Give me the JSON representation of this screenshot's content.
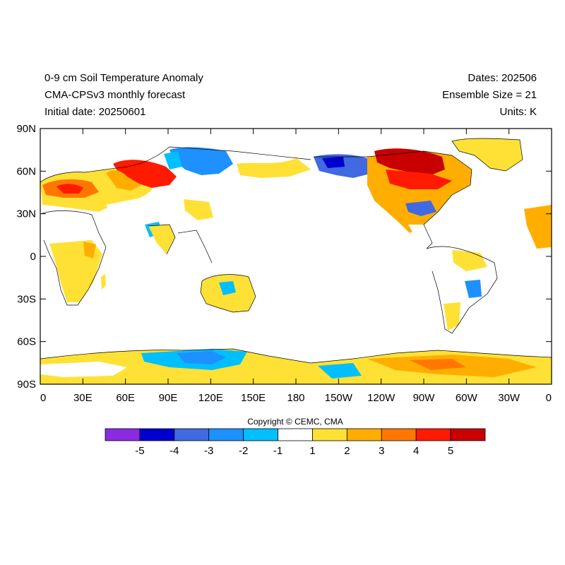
{
  "header": {
    "title": "0-9 cm Soil Temperature Anomaly",
    "subtitle": "CMA-CPSv3 monthly forecast",
    "initial_date": "Initial date: 20250601",
    "dates": "Dates: 202506",
    "ensemble": "Ensemble Size = 21",
    "units": "Units: K"
  },
  "map": {
    "projection": "cylindrical equidistant, centered 180",
    "lat_ticks": [
      "90N",
      "60N",
      "30N",
      "0",
      "30S",
      "60S",
      "90S"
    ],
    "lon_ticks": [
      "0",
      "30E",
      "60E",
      "90E",
      "120E",
      "150E",
      "180",
      "150W",
      "120W",
      "90W",
      "60W",
      "30W",
      "0"
    ],
    "ocean_color": "#ffffff",
    "coastline_color": "#000000"
  },
  "copyright": "Copyright © CEMC, CMA",
  "colorbar": {
    "labels": [
      "-5",
      "-4",
      "-3",
      "-2",
      "-1",
      "1",
      "2",
      "3",
      "4",
      "5"
    ],
    "colors": [
      "#8a2be2",
      "#0000cd",
      "#4169e1",
      "#1e90ff",
      "#00bfff",
      "#ffffff",
      "#ffe135",
      "#ffae00",
      "#ff7700",
      "#ff1a00",
      "#c80000"
    ]
  }
}
